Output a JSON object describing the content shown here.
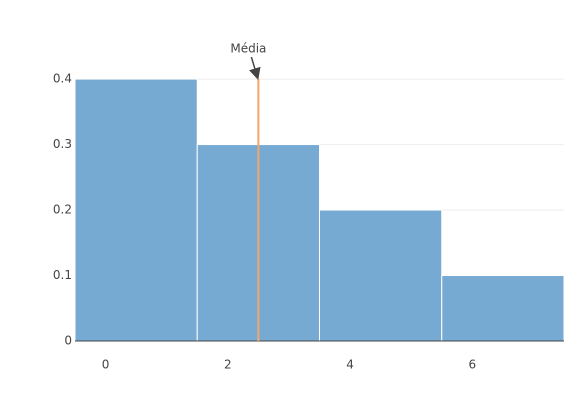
{
  "chart_data": {
    "type": "histogram",
    "bins": [
      -0.5,
      1.5,
      3.5,
      5.5,
      7.5
    ],
    "values": [
      0.4,
      0.3,
      0.2,
      0.1
    ],
    "color": "#77aad2",
    "xlim": [
      -0.5,
      7.5
    ],
    "xticks": [
      0,
      2,
      4,
      6
    ],
    "ylim": [
      0,
      0.42
    ],
    "yticks": [
      0,
      0.1,
      0.2,
      0.3,
      0.4
    ],
    "grid": true,
    "mean_line": {
      "x": 2.5,
      "label": "Média",
      "color": "#f4a66a"
    }
  }
}
